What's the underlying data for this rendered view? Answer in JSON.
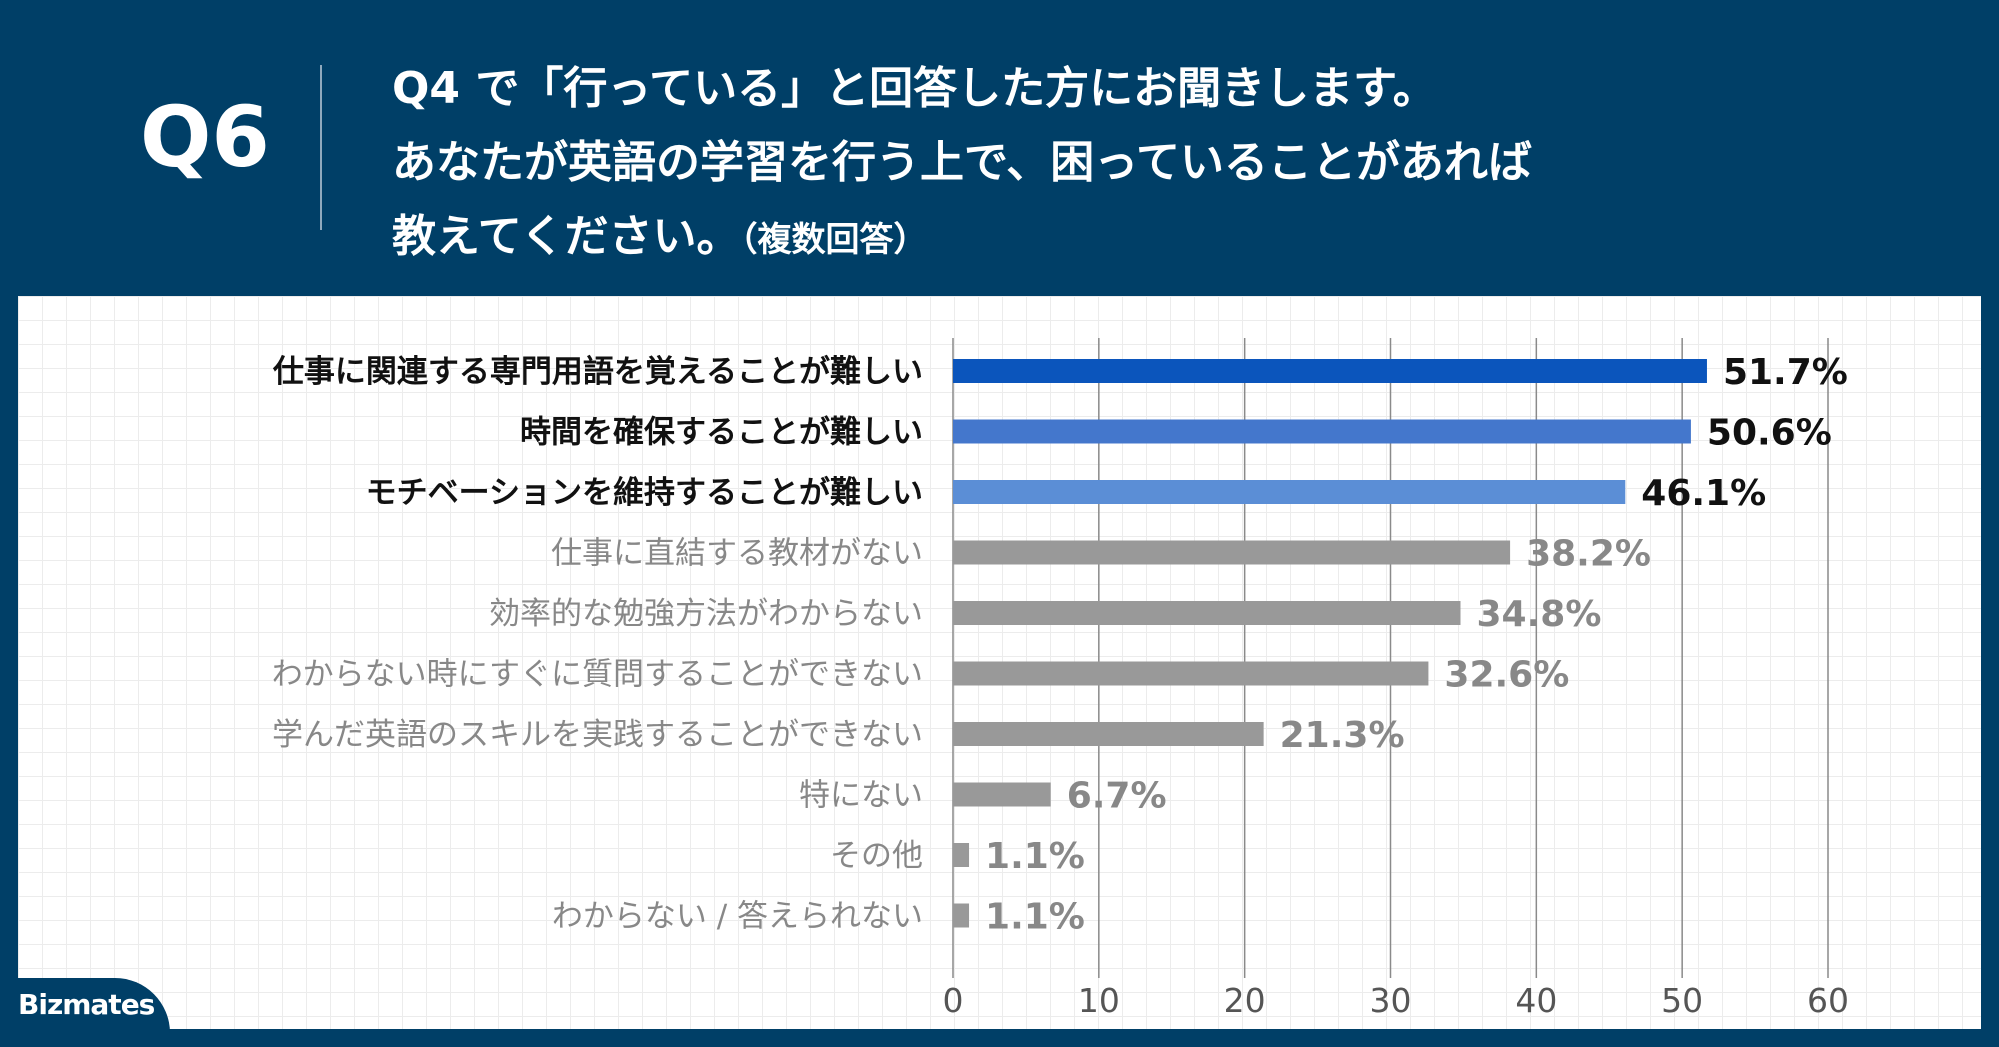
{
  "header": {
    "qnum": "Q6",
    "question_line1": "Q4 で「行っている」と回答した方にお聞きします。",
    "question_line2": "あなたが英語の学習を行う上で、困っていることがあれば",
    "question_line3": "教えてください。",
    "question_note": "（複数回答）"
  },
  "logo": {
    "text": "Bizmates"
  },
  "chart_data": {
    "type": "bar",
    "orientation": "horizontal",
    "categories": [
      "仕事に関連する専門用語を覚えることが難しい",
      "時間を確保することが難しい",
      "モチベーションを維持することが難しい",
      "仕事に直結する教材がない",
      "効率的な勉強方法がわからない",
      "わからない時にすぐに質問することができない",
      "学んだ英語のスキルを実践することができない",
      "特にない",
      "その他",
      "わからない / 答えられない"
    ],
    "values": [
      51.7,
      50.6,
      46.1,
      38.2,
      34.8,
      32.6,
      21.3,
      6.7,
      1.1,
      1.1
    ],
    "value_labels": [
      "51.7%",
      "50.6%",
      "46.1%",
      "38.2%",
      "34.8%",
      "32.6%",
      "21.3%",
      "6.7%",
      "1.1%",
      "1.1%"
    ],
    "bar_colors": [
      "#0b55bc",
      "#4477cc",
      "#5b8ed6",
      "#999999",
      "#999999",
      "#999999",
      "#999999",
      "#999999",
      "#999999",
      "#999999"
    ],
    "label_colors": [
      "#111111",
      "#111111",
      "#111111",
      "#888888",
      "#888888",
      "#888888",
      "#888888",
      "#888888",
      "#888888",
      "#888888"
    ],
    "xlim": [
      0,
      60
    ],
    "xticks": [
      0,
      10,
      20,
      30,
      40,
      50,
      60
    ],
    "grid": true,
    "title": "",
    "xlabel": "",
    "ylabel": ""
  }
}
